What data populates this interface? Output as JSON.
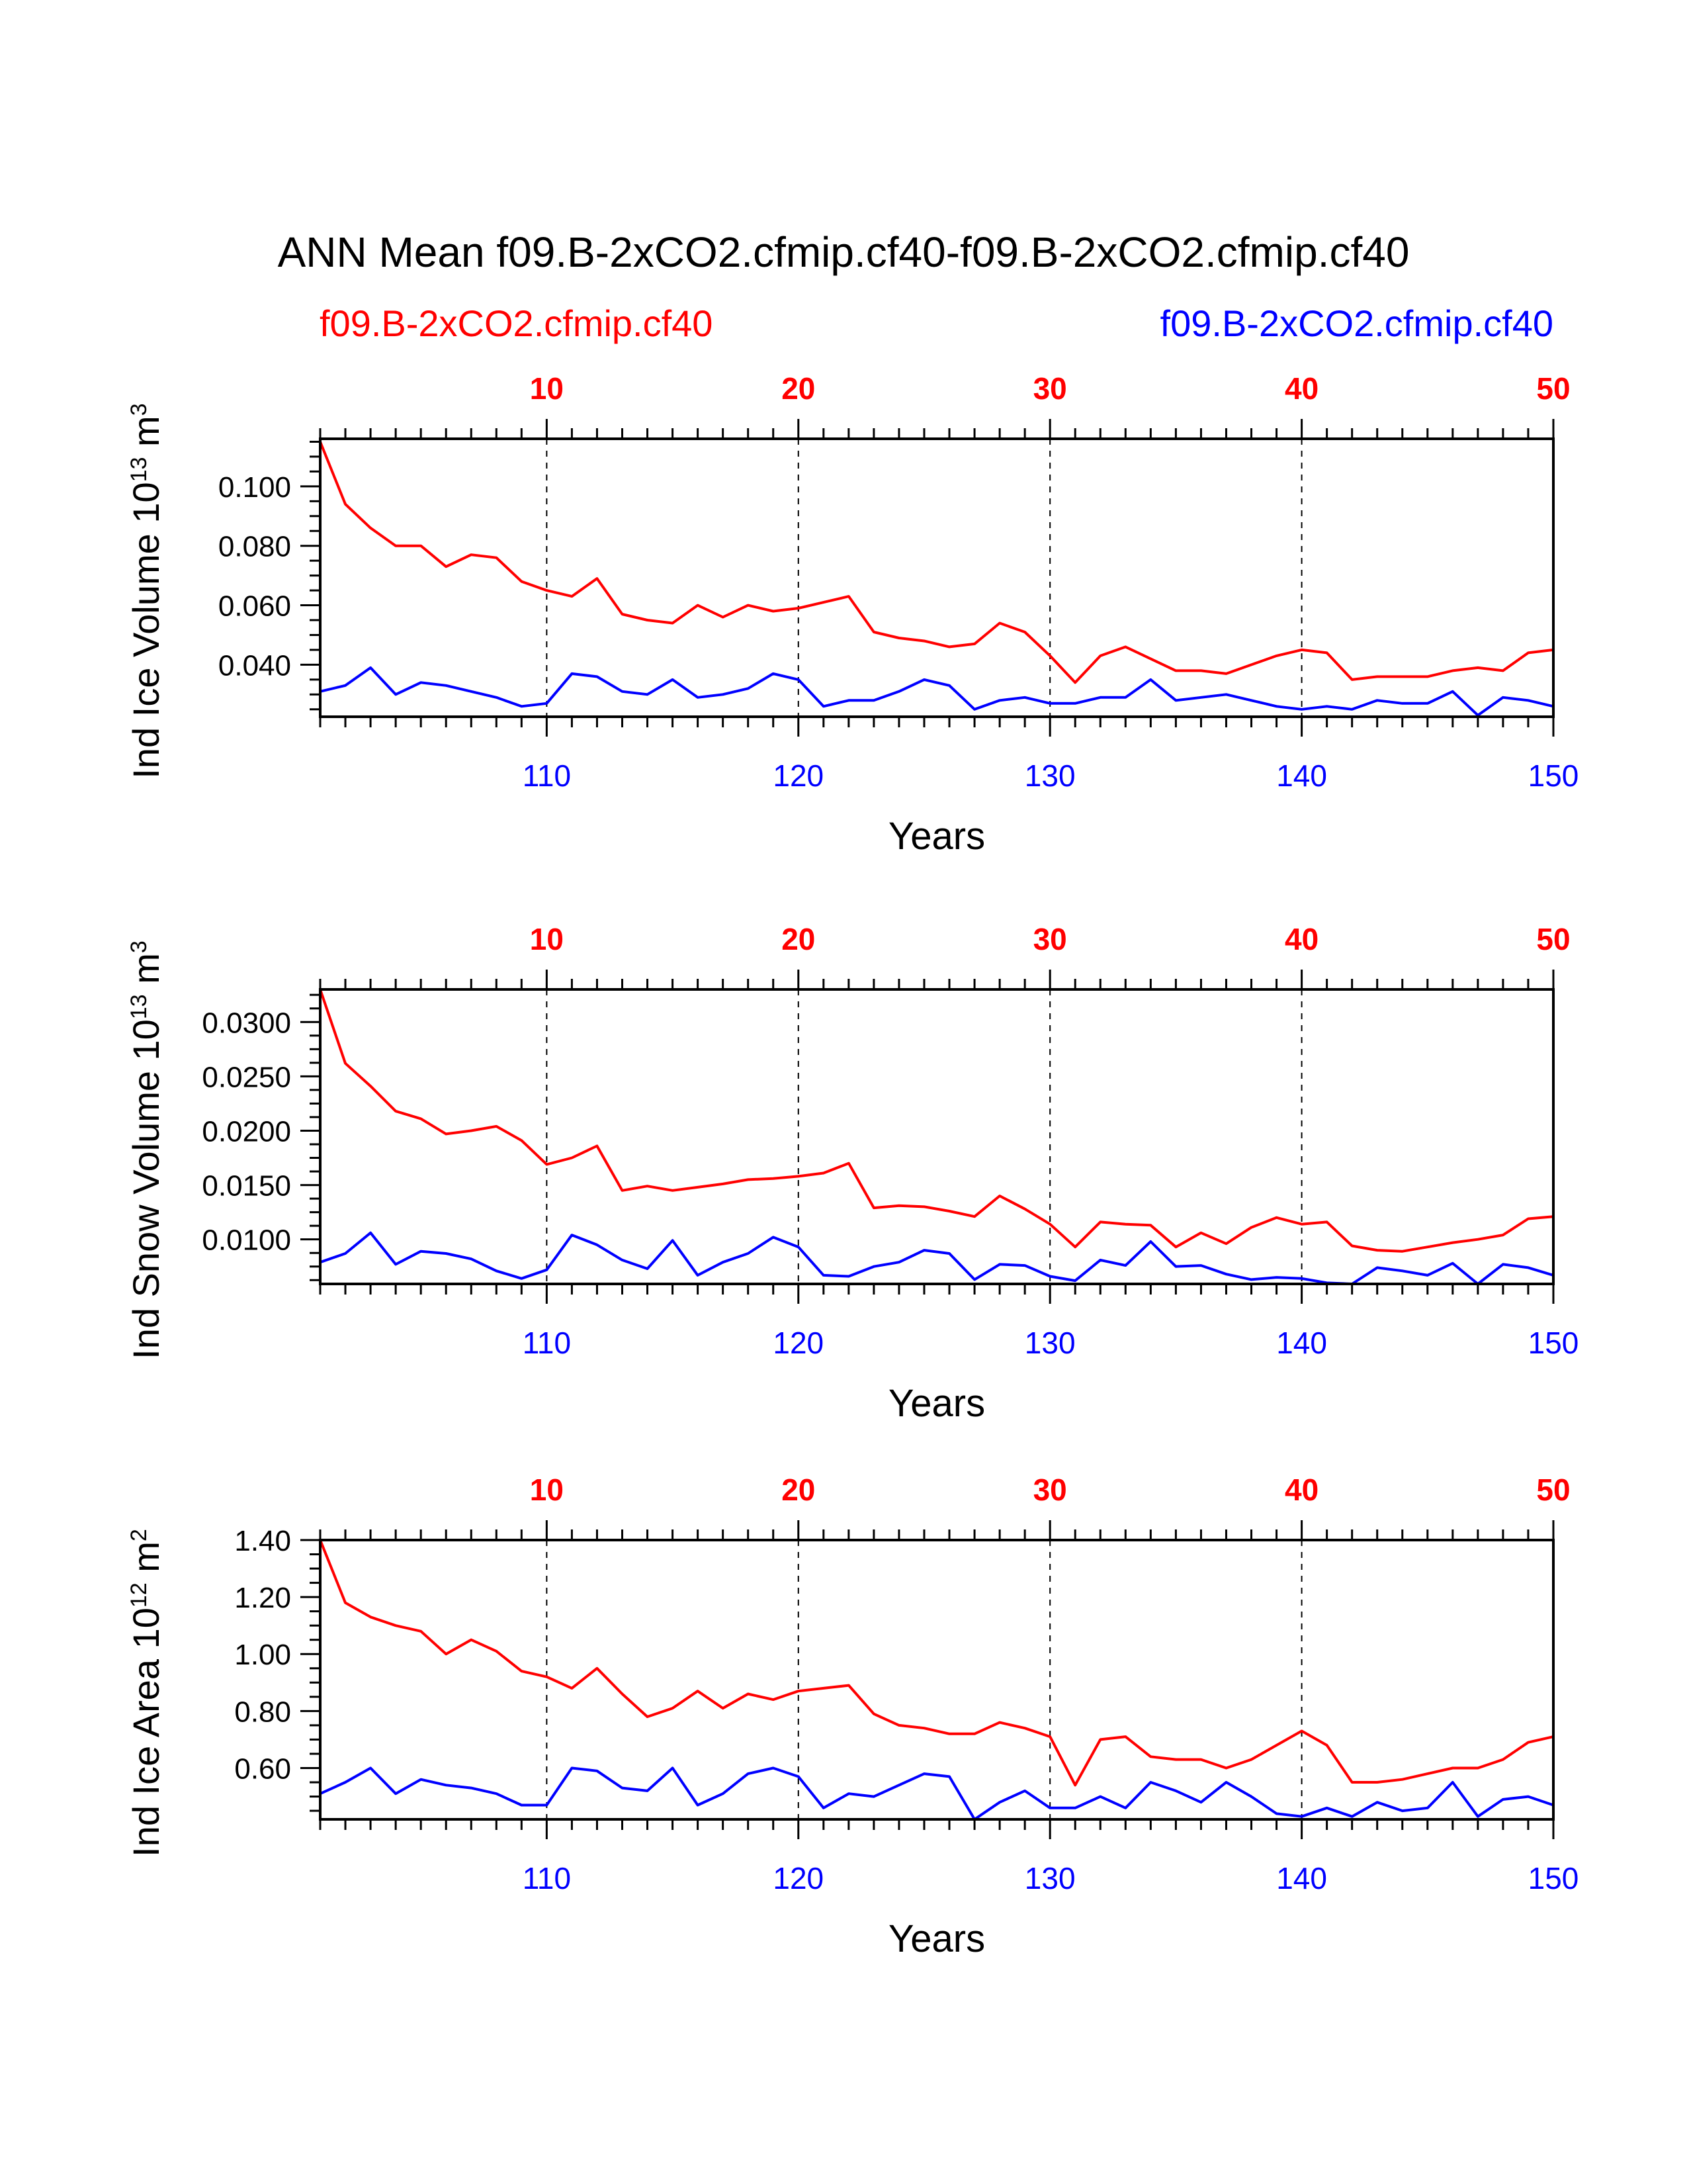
{
  "title": "ANN Mean f09.B-2xCO2.cfmip.cf40-f09.B-2xCO2.cfmip.cf40",
  "legend": {
    "left_label": "f09.B-2xCO2.cfmip.cf40",
    "right_label": "f09.B-2xCO2.cfmip.cf40",
    "left_color": "#ff0000",
    "right_color": "#0000ff"
  },
  "colors": {
    "series1": "#ff0000",
    "series2": "#0000ff",
    "axis": "#000000"
  },
  "top_axis_ticks": [
    "10",
    "20",
    "30",
    "40",
    "50"
  ],
  "bottom_axis_ticks": [
    "110",
    "120",
    "130",
    "140",
    "150"
  ],
  "chart_data": [
    {
      "type": "line",
      "title": "",
      "ylabel": "Ind Ice Volume 10",
      "ylabel_exp": "13",
      "ylabel_unit": "m",
      "ylabel_unit_exp": "3",
      "xlabel": "Years",
      "x_top": [
        1,
        50
      ],
      "x_bottom": [
        101,
        150
      ],
      "ylim": [
        0.0225,
        0.116
      ],
      "yticks": [
        "0.040",
        "0.060",
        "0.080",
        "0.100"
      ],
      "ytick_values": [
        0.04,
        0.06,
        0.08,
        0.1
      ],
      "series": [
        {
          "name": "f09.B-2xCO2.cfmip.cf40",
          "axis": "top",
          "color": "#ff0000",
          "values": [
            0.115,
            0.094,
            0.086,
            0.08,
            0.08,
            0.073,
            0.077,
            0.076,
            0.068,
            0.065,
            0.063,
            0.069,
            0.057,
            0.055,
            0.054,
            0.06,
            0.056,
            0.06,
            0.058,
            0.059,
            0.061,
            0.063,
            0.051,
            0.049,
            0.048,
            0.046,
            0.047,
            0.054,
            0.051,
            0.043,
            0.034,
            0.043,
            0.046,
            0.042,
            0.038,
            0.038,
            0.037,
            0.04,
            0.043,
            0.045,
            0.044,
            0.035,
            0.036,
            0.036,
            0.036,
            0.038,
            0.039,
            0.038,
            0.044,
            0.045
          ]
        },
        {
          "name": "f09.B-2xCO2.cfmip.cf40",
          "axis": "bottom",
          "color": "#0000ff",
          "values": [
            0.031,
            0.033,
            0.039,
            0.03,
            0.034,
            0.033,
            0.031,
            0.029,
            0.026,
            0.027,
            0.037,
            0.036,
            0.031,
            0.03,
            0.035,
            0.029,
            0.03,
            0.032,
            0.037,
            0.035,
            0.026,
            0.028,
            0.028,
            0.031,
            0.035,
            0.033,
            0.025,
            0.028,
            0.029,
            0.027,
            0.027,
            0.029,
            0.029,
            0.035,
            0.028,
            0.029,
            0.03,
            0.028,
            0.026,
            0.025,
            0.026,
            0.025,
            0.028,
            0.027,
            0.027,
            0.031,
            0.023,
            0.029,
            0.028,
            0.026
          ]
        }
      ]
    },
    {
      "type": "line",
      "title": "",
      "ylabel": "Ind Snow Volume 10",
      "ylabel_exp": "13",
      "ylabel_unit": "m",
      "ylabel_unit_exp": "3",
      "xlabel": "Years",
      "x_top": [
        1,
        50
      ],
      "x_bottom": [
        101,
        150
      ],
      "ylim": [
        0.0059,
        0.033
      ],
      "yticks": [
        "0.0100",
        "0.0150",
        "0.0200",
        "0.0250",
        "0.0300"
      ],
      "ytick_values": [
        0.01,
        0.015,
        0.02,
        0.025,
        0.03
      ],
      "series": [
        {
          "name": "f09.B-2xCO2.cfmip.cf40",
          "axis": "top",
          "color": "#ff0000",
          "values": [
            0.033,
            0.0262,
            0.0241,
            0.0218,
            0.0211,
            0.0197,
            0.02,
            0.0204,
            0.0191,
            0.0169,
            0.0175,
            0.0186,
            0.0145,
            0.0149,
            0.0145,
            0.0148,
            0.0151,
            0.0155,
            0.0156,
            0.0158,
            0.0161,
            0.017,
            0.0129,
            0.0131,
            0.013,
            0.0126,
            0.0121,
            0.014,
            0.0128,
            0.0114,
            0.0093,
            0.0116,
            0.0114,
            0.0113,
            0.0093,
            0.0106,
            0.0096,
            0.0111,
            0.012,
            0.0114,
            0.0116,
            0.0094,
            0.009,
            0.0089,
            0.0093,
            0.0097,
            0.01,
            0.0104,
            0.0119,
            0.0121
          ]
        },
        {
          "name": "f09.B-2xCO2.cfmip.cf40",
          "axis": "bottom",
          "color": "#0000ff",
          "values": [
            0.0079,
            0.0087,
            0.0106,
            0.0077,
            0.0089,
            0.0087,
            0.0082,
            0.0071,
            0.0064,
            0.0072,
            0.0104,
            0.0095,
            0.0081,
            0.0073,
            0.0099,
            0.0067,
            0.0079,
            0.0087,
            0.0102,
            0.0093,
            0.0067,
            0.0066,
            0.0075,
            0.0079,
            0.009,
            0.0087,
            0.0063,
            0.0077,
            0.0076,
            0.0066,
            0.0062,
            0.0081,
            0.0076,
            0.0098,
            0.0075,
            0.0076,
            0.0068,
            0.0063,
            0.0065,
            0.0064,
            0.006,
            0.0059,
            0.0074,
            0.0071,
            0.0067,
            0.0078,
            0.0059,
            0.0077,
            0.0074,
            0.0067
          ]
        }
      ]
    },
    {
      "type": "line",
      "title": "",
      "ylabel": "Ind Ice Area 10",
      "ylabel_exp": "12",
      "ylabel_unit": "m",
      "ylabel_unit_exp": "2",
      "xlabel": "Years",
      "x_top": [
        1,
        50
      ],
      "x_bottom": [
        101,
        150
      ],
      "ylim": [
        0.42,
        1.4
      ],
      "yticks": [
        "0.60",
        "0.80",
        "1.00",
        "1.20",
        "1.40"
      ],
      "ytick_values": [
        0.6,
        0.8,
        1.0,
        1.2,
        1.4
      ],
      "series": [
        {
          "name": "f09.B-2xCO2.cfmip.cf40",
          "axis": "top",
          "color": "#ff0000",
          "values": [
            1.4,
            1.18,
            1.13,
            1.1,
            1.08,
            1.0,
            1.05,
            1.01,
            0.94,
            0.92,
            0.88,
            0.95,
            0.86,
            0.78,
            0.81,
            0.87,
            0.81,
            0.86,
            0.84,
            0.87,
            0.88,
            0.89,
            0.79,
            0.75,
            0.74,
            0.72,
            0.72,
            0.76,
            0.74,
            0.71,
            0.54,
            0.7,
            0.71,
            0.64,
            0.63,
            0.63,
            0.6,
            0.63,
            0.68,
            0.73,
            0.68,
            0.55,
            0.55,
            0.56,
            0.58,
            0.6,
            0.6,
            0.63,
            0.69,
            0.71
          ]
        },
        {
          "name": "f09.B-2xCO2.cfmip.cf40",
          "axis": "bottom",
          "color": "#0000ff",
          "values": [
            0.51,
            0.55,
            0.6,
            0.51,
            0.56,
            0.54,
            0.53,
            0.51,
            0.47,
            0.47,
            0.6,
            0.59,
            0.53,
            0.52,
            0.6,
            0.47,
            0.51,
            0.58,
            0.6,
            0.57,
            0.46,
            0.51,
            0.5,
            0.54,
            0.58,
            0.57,
            0.42,
            0.48,
            0.52,
            0.46,
            0.46,
            0.5,
            0.46,
            0.55,
            0.52,
            0.48,
            0.55,
            0.5,
            0.44,
            0.43,
            0.46,
            0.43,
            0.48,
            0.45,
            0.46,
            0.55,
            0.43,
            0.49,
            0.5,
            0.47
          ]
        }
      ]
    }
  ]
}
